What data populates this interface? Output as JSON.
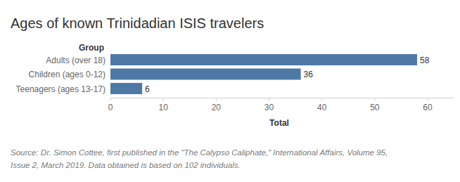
{
  "chart_data": {
    "type": "bar",
    "orientation": "horizontal",
    "title": "Ages of known Trinidadian ISIS travelers",
    "ylabel": "Group",
    "xlabel": "Total",
    "categories": [
      "Adults (over 18)",
      "Children (ages 0-12)",
      "Teenagers (ages 13-17)"
    ],
    "values": [
      58,
      36,
      6
    ],
    "color": "#4e79a7",
    "xlim": [
      0,
      65
    ],
    "xticks": [
      0,
      10,
      20,
      30,
      40,
      50,
      60
    ],
    "grid": false,
    "data_labels": true,
    "annotations": [
      "Source: Dr. Simon Cottee, first published in the \"The Calypso Caliphate,\" International Affairs, Volume 95,",
      "Issue 2, March 2019. Data obtained is based on 102 individuals."
    ]
  }
}
